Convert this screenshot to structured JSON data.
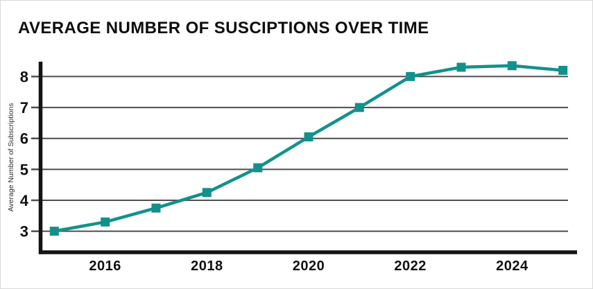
{
  "page": {
    "background": "#ffffff",
    "border_color": "#d9d9d9"
  },
  "chart_data": {
    "type": "line",
    "title": "AVERAGE NUMBER OF SUSCIPTIONS OVER TIME",
    "xlabel": "",
    "ylabel": "Average Number of Subscriptions",
    "x": [
      2015,
      2016,
      2017,
      2018,
      2019,
      2020,
      2021,
      2022,
      2023,
      2024,
      2025
    ],
    "series": [
      {
        "name": "Average Number of Subscriptions",
        "values": [
          3.0,
          3.3,
          3.75,
          4.25,
          5.05,
          6.05,
          7.0,
          8.0,
          8.3,
          8.35,
          8.2
        ],
        "color": "#12918c",
        "marker": "square"
      }
    ],
    "x_ticks": [
      2016,
      2018,
      2020,
      2022,
      2024
    ],
    "y_ticks": [
      3,
      4,
      5,
      6,
      7,
      8
    ],
    "xlim": [
      2014.75,
      2025.1
    ],
    "ylim": [
      2.32,
      8.48
    ],
    "grid": "horizontal",
    "legend": "none",
    "colors": {
      "line": "#12918c",
      "grid": "#4d4d4d",
      "axis": "#141414",
      "text": "#111111"
    }
  }
}
